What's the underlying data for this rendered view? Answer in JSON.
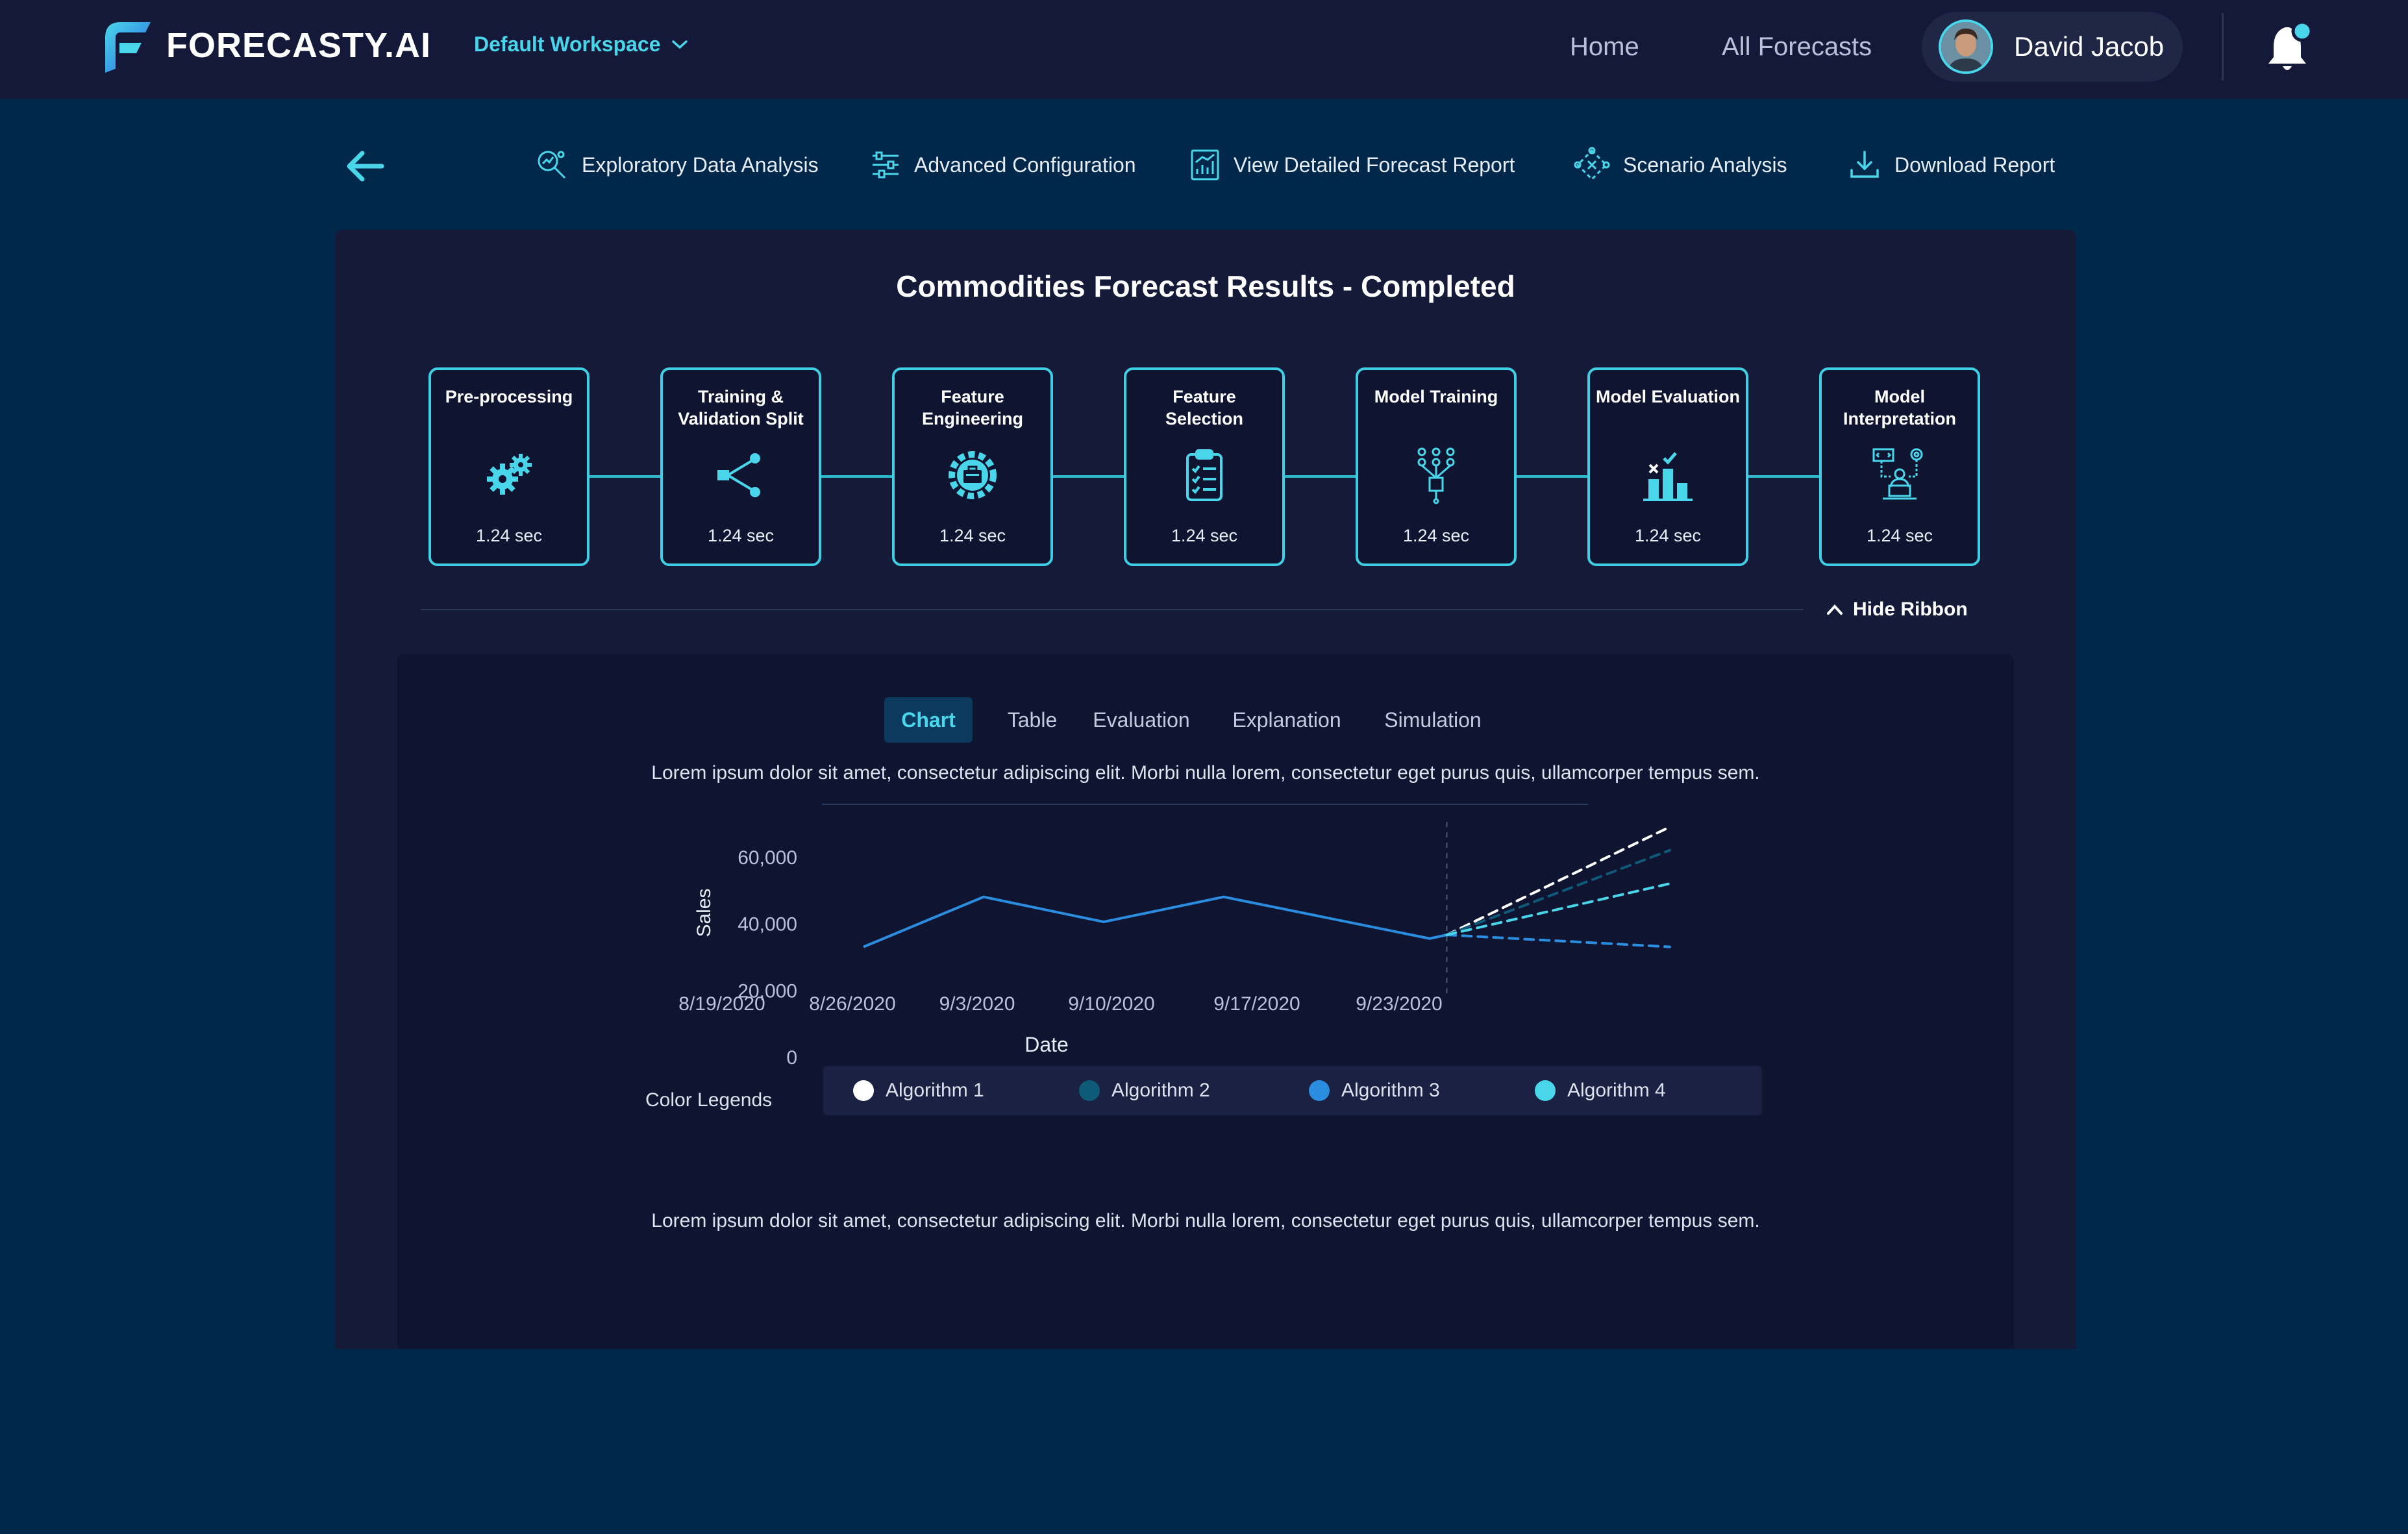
{
  "app": {
    "brand": "FORECASTY.AI",
    "workspace": "Default Workspace",
    "nav": {
      "home": "Home",
      "all_forecasts": "All Forecasts"
    },
    "user": {
      "name": "David Jacob"
    },
    "colors": {
      "accent": "#4ad6ea",
      "blue": "#2b8de0",
      "background": "#01284a"
    }
  },
  "toolbar": {
    "items": [
      {
        "label": "Exploratory Data Analysis",
        "icon": "magnify-chart-icon"
      },
      {
        "label": "Advanced Configuration",
        "icon": "sliders-icon"
      },
      {
        "label": "View Detailed Forecast Report",
        "icon": "report-chart-icon"
      },
      {
        "label": "Scenario Analysis",
        "icon": "scenario-icon"
      },
      {
        "label": "Download Report",
        "icon": "download-icon"
      }
    ]
  },
  "panel": {
    "title": "Commodities Forecast Results - Completed",
    "stages": [
      {
        "title": "Pre-processing",
        "time": "1.24 sec",
        "icon": "gears-icon"
      },
      {
        "title": "Training & Validation Split",
        "time": "1.24 sec",
        "icon": "split-icon"
      },
      {
        "title": "Feature Engineering",
        "time": "1.24 sec",
        "icon": "gear-toolbox-icon"
      },
      {
        "title": "Feature Selection",
        "time": "1.24 sec",
        "icon": "clipboard-checklist-icon"
      },
      {
        "title": "Model Training",
        "time": "1.24 sec",
        "icon": "neural-chip-icon"
      },
      {
        "title": "Model Evaluation",
        "time": "1.24 sec",
        "icon": "bar-evaluation-icon"
      },
      {
        "title": "Model Interpretation",
        "time": "1.24 sec",
        "icon": "person-laptop-icon"
      }
    ],
    "hide_ribbon": "Hide Ribbon"
  },
  "content": {
    "tabs": [
      {
        "label": "Chart",
        "active": true
      },
      {
        "label": "Table",
        "active": false
      },
      {
        "label": "Evaluation",
        "active": false
      },
      {
        "label": "Explanation",
        "active": false
      },
      {
        "label": "Simulation",
        "active": false
      }
    ],
    "description_top": "Lorem ipsum dolor sit amet, consectetur adipiscing elit. Morbi nulla lorem, consectetur eget purus quis, ullamcorper tempus sem.",
    "description_bottom": "Lorem ipsum dolor sit amet, consectetur adipiscing elit. Morbi nulla lorem, consectetur eget purus quis, ullamcorper tempus sem.",
    "legend_label": "Color Legends"
  },
  "chart_data": {
    "type": "line",
    "xlabel": "Date",
    "ylabel": "Sales",
    "ylim": [
      0,
      60000
    ],
    "yticks": [
      {
        "value": 0,
        "label": "0"
      },
      {
        "value": 20000,
        "label": "20,000"
      },
      {
        "value": 40000,
        "label": "40,000"
      },
      {
        "value": 60000,
        "label": "60,000"
      }
    ],
    "xticks": [
      "8/19/2020",
      "8/26/2020",
      "9/3/2020",
      "9/10/2020",
      "9/17/2020",
      "9/23/2020"
    ],
    "xlim": [
      "2020-08-14",
      "2020-09-30"
    ],
    "forecast_start": "2020-09-17",
    "historical": {
      "color": "#2b8de0",
      "points": [
        {
          "x": "2020-08-14",
          "y": 33000
        },
        {
          "x": "2020-08-21",
          "y": 48000
        },
        {
          "x": "2020-08-28",
          "y": 40500
        },
        {
          "x": "2020-09-04",
          "y": 48000
        },
        {
          "x": "2020-09-16",
          "y": 35500
        },
        {
          "x": "2020-09-17",
          "y": 36600
        }
      ]
    },
    "series": [
      {
        "name": "Algorithm 1",
        "color": "#ffffff",
        "points": [
          {
            "x": "2020-09-17",
            "y": 36600
          },
          {
            "x": "2020-09-30",
            "y": 69000
          }
        ]
      },
      {
        "name": "Algorithm 2",
        "color": "#0e5a78",
        "points": [
          {
            "x": "2020-09-17",
            "y": 36600
          },
          {
            "x": "2020-09-30",
            "y": 62000
          }
        ]
      },
      {
        "name": "Algorithm 3",
        "color": "#2b8de0",
        "points": [
          {
            "x": "2020-09-17",
            "y": 36600
          },
          {
            "x": "2020-09-30",
            "y": 33000
          }
        ]
      },
      {
        "name": "Algorithm 4",
        "color": "#4ad6ea",
        "points": [
          {
            "x": "2020-09-17",
            "y": 36600
          },
          {
            "x": "2020-09-30",
            "y": 52000
          }
        ]
      }
    ]
  }
}
